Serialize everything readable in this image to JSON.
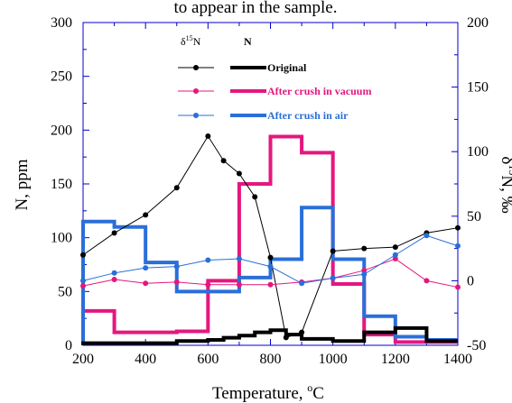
{
  "chart_data": {
    "type": "line",
    "caption_top": "to appear in the sample.",
    "xlabel": "Temperature, ",
    "xlabel_sup": "o",
    "xlabel_unit": "C",
    "ylabel_left": "N, ppm",
    "ylabel_right_prefix": "δ",
    "ylabel_right_sup": "15",
    "ylabel_right_suffix": "N, ‰",
    "xlim": [
      200,
      1400
    ],
    "ylim_left": [
      0,
      300
    ],
    "ylim_right": [
      -50,
      200
    ],
    "x_ticks": [
      "200",
      "400",
      "600",
      "800",
      "1000",
      "1200",
      "1400"
    ],
    "y_left_ticks": [
      "0",
      "50",
      "100",
      "150",
      "200",
      "250",
      "300"
    ],
    "y_right_ticks": [
      "-50",
      "0",
      "50",
      "100",
      "150",
      "200"
    ],
    "legend": {
      "position": "top-center",
      "col_delta_prefix": "δ",
      "col_delta_sup": "15",
      "col_delta_suffix": "N",
      "col_n": "N"
    },
    "colors": {
      "original": "#000000",
      "vacuum": "#e4177f",
      "air": "#2a6fd9",
      "frame": "#0000cc"
    },
    "series": [
      {
        "name": "Original",
        "color_key": "original",
        "delta15N": [
          [
            200,
            20
          ],
          [
            300,
            37
          ],
          [
            400,
            51
          ],
          [
            500,
            72
          ],
          [
            600,
            112
          ],
          [
            650,
            93
          ],
          [
            700,
            83
          ],
          [
            750,
            65
          ],
          [
            800,
            18
          ],
          [
            850,
            -44
          ],
          [
            900,
            -40
          ],
          [
            1000,
            23
          ],
          [
            1100,
            25
          ],
          [
            1200,
            26
          ],
          [
            1300,
            37
          ],
          [
            1400,
            41
          ]
        ],
        "N_ppm_steps": [
          [
            200,
            2
          ],
          [
            300,
            2
          ],
          [
            400,
            2
          ],
          [
            500,
            4
          ],
          [
            600,
            5
          ],
          [
            650,
            7
          ],
          [
            700,
            9
          ],
          [
            750,
            12
          ],
          [
            800,
            14
          ],
          [
            850,
            10
          ],
          [
            900,
            6
          ],
          [
            1000,
            4
          ],
          [
            1100,
            12
          ],
          [
            1200,
            16
          ],
          [
            1300,
            4
          ],
          [
            1400,
            4
          ]
        ]
      },
      {
        "name": "After crush in vacuum",
        "color_key": "vacuum",
        "delta15N": [
          [
            200,
            -4
          ],
          [
            300,
            1
          ],
          [
            400,
            -2
          ],
          [
            500,
            -1
          ],
          [
            600,
            -3
          ],
          [
            700,
            -3
          ],
          [
            800,
            -3
          ],
          [
            900,
            -1
          ],
          [
            1000,
            2
          ],
          [
            1100,
            8
          ],
          [
            1200,
            17
          ],
          [
            1300,
            0
          ],
          [
            1400,
            -5
          ]
        ],
        "N_ppm_steps": [
          [
            200,
            32
          ],
          [
            300,
            12
          ],
          [
            400,
            12
          ],
          [
            500,
            13
          ],
          [
            600,
            60
          ],
          [
            700,
            150
          ],
          [
            800,
            194
          ],
          [
            900,
            179
          ],
          [
            1000,
            57
          ],
          [
            1100,
            10
          ],
          [
            1200,
            3
          ],
          [
            1300,
            3
          ],
          [
            1400,
            3
          ]
        ]
      },
      {
        "name": "After crush in air",
        "color_key": "air",
        "delta15N": [
          [
            200,
            0
          ],
          [
            300,
            6
          ],
          [
            400,
            10
          ],
          [
            500,
            11
          ],
          [
            600,
            16
          ],
          [
            700,
            17
          ],
          [
            800,
            11
          ],
          [
            900,
            -2
          ],
          [
            1000,
            2
          ],
          [
            1100,
            5
          ],
          [
            1200,
            20
          ],
          [
            1300,
            35
          ],
          [
            1400,
            27
          ]
        ],
        "N_ppm_steps": [
          [
            200,
            115
          ],
          [
            300,
            110
          ],
          [
            400,
            77
          ],
          [
            500,
            50
          ],
          [
            600,
            50
          ],
          [
            700,
            63
          ],
          [
            800,
            80
          ],
          [
            900,
            128
          ],
          [
            1000,
            80
          ],
          [
            1100,
            27
          ],
          [
            1200,
            8
          ],
          [
            1300,
            5
          ],
          [
            1400,
            5
          ]
        ]
      }
    ]
  }
}
